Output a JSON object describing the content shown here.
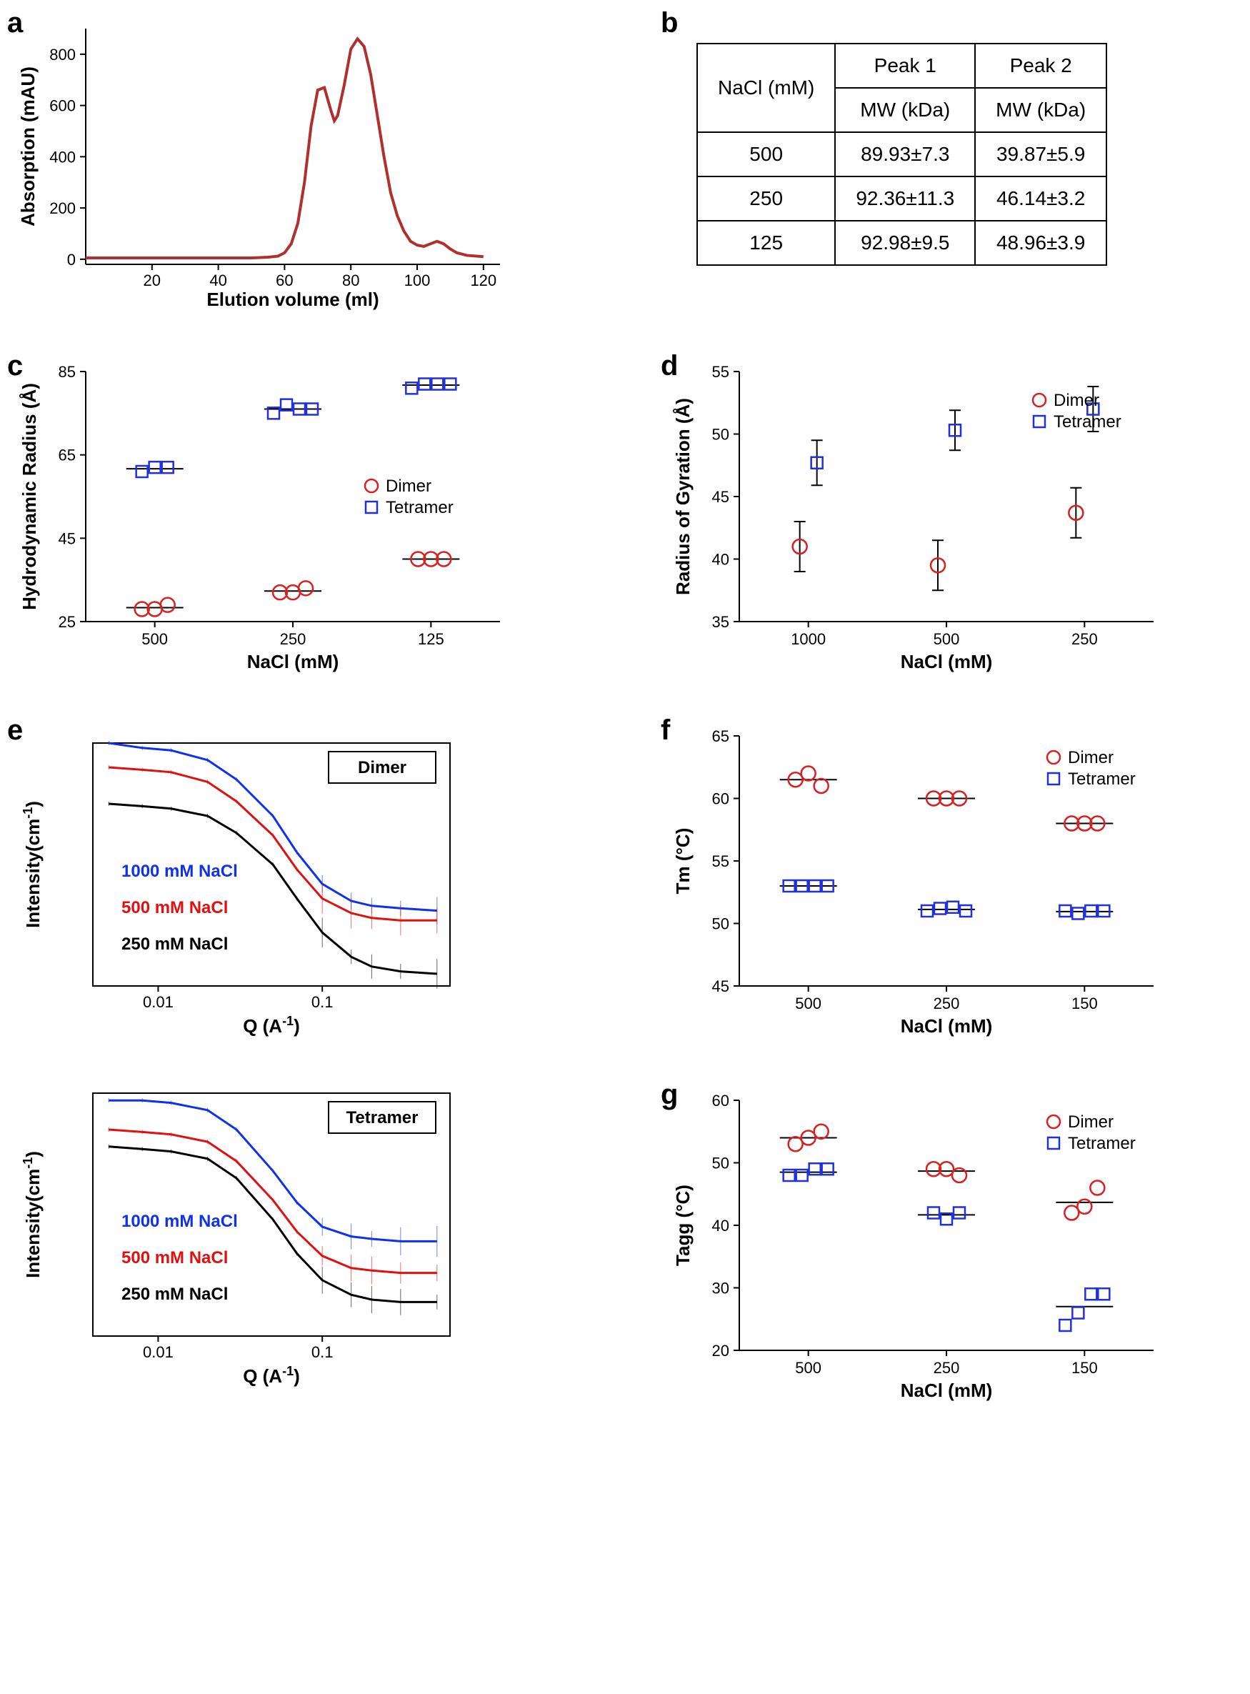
{
  "panel_a": {
    "label": "a",
    "type": "line",
    "xlabel": "Elution volume (ml)",
    "ylabel": "Absorption (mAU)",
    "xlim": [
      0,
      125
    ],
    "ylim": [
      -20,
      900
    ],
    "xticks": [
      20,
      40,
      60,
      80,
      100,
      120
    ],
    "yticks": [
      0,
      200,
      400,
      600,
      800
    ],
    "line_color": "#b03030",
    "line_width": 4,
    "data": [
      [
        0,
        5
      ],
      [
        5,
        5
      ],
      [
        10,
        5
      ],
      [
        15,
        5
      ],
      [
        20,
        5
      ],
      [
        25,
        5
      ],
      [
        30,
        5
      ],
      [
        35,
        5
      ],
      [
        40,
        5
      ],
      [
        45,
        5
      ],
      [
        50,
        5
      ],
      [
        55,
        8
      ],
      [
        58,
        12
      ],
      [
        60,
        25
      ],
      [
        62,
        60
      ],
      [
        64,
        140
      ],
      [
        66,
        300
      ],
      [
        68,
        520
      ],
      [
        70,
        660
      ],
      [
        72,
        670
      ],
      [
        74,
        580
      ],
      [
        75,
        540
      ],
      [
        76,
        560
      ],
      [
        78,
        680
      ],
      [
        80,
        820
      ],
      [
        82,
        860
      ],
      [
        84,
        830
      ],
      [
        86,
        720
      ],
      [
        88,
        560
      ],
      [
        90,
        400
      ],
      [
        92,
        260
      ],
      [
        94,
        170
      ],
      [
        96,
        110
      ],
      [
        98,
        70
      ],
      [
        100,
        55
      ],
      [
        102,
        50
      ],
      [
        104,
        60
      ],
      [
        106,
        70
      ],
      [
        108,
        60
      ],
      [
        110,
        40
      ],
      [
        112,
        25
      ],
      [
        115,
        15
      ],
      [
        120,
        10
      ]
    ]
  },
  "panel_b": {
    "label": "b",
    "header_nacl": "NaCl (mM)",
    "header_p1": "Peak 1",
    "header_p2": "Peak 2",
    "sub_mw": "MW (kDa)",
    "rows": [
      {
        "nacl": "500",
        "p1": "89.93±7.3",
        "p2": "39.87±5.9"
      },
      {
        "nacl": "250",
        "p1": "92.36±11.3",
        "p2": "46.14±3.2"
      },
      {
        "nacl": "125",
        "p1": "92.98±9.5",
        "p2": "48.96±3.9"
      }
    ]
  },
  "panel_c": {
    "label": "c",
    "type": "scatter",
    "xlabel": "NaCl (mM)",
    "ylabel": "Hydrodynamic Radius (Å)",
    "x_categories": [
      "500",
      "250",
      "125"
    ],
    "ylim": [
      25,
      85
    ],
    "yticks": [
      25,
      45,
      65,
      85
    ],
    "legend": [
      "Dimer",
      "Tetramer"
    ],
    "colors": {
      "Dimer": "#d92020",
      "Tetramer": "#2030e0"
    },
    "markers": {
      "Dimer": "circle",
      "Tetramer": "square"
    },
    "marker_size": 10,
    "dimer": {
      "500": [
        28,
        28,
        29
      ],
      "250": [
        32,
        32,
        33
      ],
      "125": [
        40,
        40,
        40
      ]
    },
    "tetramer": {
      "500": [
        61,
        62,
        62
      ],
      "250": [
        75,
        77,
        76,
        76
      ],
      "125": [
        81,
        82,
        82,
        82
      ]
    }
  },
  "panel_d": {
    "label": "d",
    "type": "scatter",
    "xlabel": "NaCl (mM)",
    "ylabel": "Radius of Gyration (Å)",
    "x_categories": [
      "1000",
      "500",
      "250"
    ],
    "ylim": [
      35,
      55
    ],
    "yticks": [
      35,
      40,
      45,
      50,
      55
    ],
    "legend": [
      "Dimer",
      "Tetramer"
    ],
    "colors": {
      "Dimer": "#d92020",
      "Tetramer": "#2030e0"
    },
    "markers": {
      "Dimer": "circle",
      "Tetramer": "square"
    },
    "marker_size": 10,
    "points": {
      "Dimer": {
        "1000": {
          "v": 41,
          "e": 2
        },
        "500": {
          "v": 39.5,
          "e": 2
        },
        "250": {
          "v": 43.7,
          "e": 2
        }
      },
      "Tetramer": {
        "1000": {
          "v": 47.7,
          "e": 1.8
        },
        "500": {
          "v": 50.3,
          "e": 1.6
        },
        "250": {
          "v": 52,
          "e": 1.8
        }
      }
    }
  },
  "panel_e": {
    "label": "e",
    "type": "line",
    "xlabel": "Q (A",
    "xlabel_sup": "-1",
    "xlabel_close": ")",
    "ylabel": "Intensity(cm",
    "ylabel_sup": "-1",
    "ylabel_close": ")",
    "xticks": [
      0.01,
      0.1
    ],
    "colors": {
      "1000": "#1030f0",
      "500": "#e01010",
      "250": "#000000"
    },
    "condition_labels": [
      "1000 mM NaCl",
      "500 mM NaCl",
      "250 mM NaCl"
    ],
    "subpanels": [
      "Dimer",
      "Tetramer"
    ],
    "x_range": [
      0.004,
      0.6
    ],
    "curves": {
      "Dimer": {
        "1000": [
          [
            0.005,
            1.0
          ],
          [
            0.008,
            0.98
          ],
          [
            0.012,
            0.97
          ],
          [
            0.02,
            0.93
          ],
          [
            0.03,
            0.85
          ],
          [
            0.05,
            0.7
          ],
          [
            0.07,
            0.55
          ],
          [
            0.1,
            0.42
          ],
          [
            0.15,
            0.35
          ],
          [
            0.2,
            0.33
          ],
          [
            0.3,
            0.32
          ],
          [
            0.5,
            0.31
          ]
        ],
        "500": [
          [
            0.005,
            0.9
          ],
          [
            0.008,
            0.89
          ],
          [
            0.012,
            0.88
          ],
          [
            0.02,
            0.84
          ],
          [
            0.03,
            0.76
          ],
          [
            0.05,
            0.62
          ],
          [
            0.07,
            0.48
          ],
          [
            0.1,
            0.36
          ],
          [
            0.15,
            0.3
          ],
          [
            0.2,
            0.28
          ],
          [
            0.3,
            0.27
          ],
          [
            0.5,
            0.27
          ]
        ],
        "250": [
          [
            0.005,
            0.75
          ],
          [
            0.008,
            0.74
          ],
          [
            0.012,
            0.73
          ],
          [
            0.02,
            0.7
          ],
          [
            0.03,
            0.63
          ],
          [
            0.05,
            0.5
          ],
          [
            0.07,
            0.36
          ],
          [
            0.1,
            0.22
          ],
          [
            0.15,
            0.12
          ],
          [
            0.2,
            0.08
          ],
          [
            0.3,
            0.06
          ],
          [
            0.5,
            0.05
          ]
        ]
      },
      "Tetramer": {
        "1000": [
          [
            0.005,
            0.97
          ],
          [
            0.008,
            0.97
          ],
          [
            0.012,
            0.96
          ],
          [
            0.02,
            0.93
          ],
          [
            0.03,
            0.85
          ],
          [
            0.05,
            0.68
          ],
          [
            0.07,
            0.55
          ],
          [
            0.1,
            0.45
          ],
          [
            0.15,
            0.41
          ],
          [
            0.2,
            0.4
          ],
          [
            0.3,
            0.39
          ],
          [
            0.5,
            0.39
          ]
        ],
        "500": [
          [
            0.005,
            0.85
          ],
          [
            0.008,
            0.84
          ],
          [
            0.012,
            0.83
          ],
          [
            0.02,
            0.8
          ],
          [
            0.03,
            0.72
          ],
          [
            0.05,
            0.56
          ],
          [
            0.07,
            0.43
          ],
          [
            0.1,
            0.33
          ],
          [
            0.15,
            0.28
          ],
          [
            0.2,
            0.27
          ],
          [
            0.3,
            0.26
          ],
          [
            0.5,
            0.26
          ]
        ],
        "250": [
          [
            0.005,
            0.78
          ],
          [
            0.008,
            0.77
          ],
          [
            0.012,
            0.76
          ],
          [
            0.02,
            0.73
          ],
          [
            0.03,
            0.65
          ],
          [
            0.05,
            0.48
          ],
          [
            0.07,
            0.34
          ],
          [
            0.1,
            0.23
          ],
          [
            0.15,
            0.17
          ],
          [
            0.2,
            0.15
          ],
          [
            0.3,
            0.14
          ],
          [
            0.5,
            0.14
          ]
        ]
      }
    }
  },
  "panel_f": {
    "label": "f",
    "type": "scatter",
    "xlabel": "NaCl (mM)",
    "ylabel": "Tm (°C)",
    "x_categories": [
      "500",
      "250",
      "150"
    ],
    "ylim": [
      45,
      65
    ],
    "yticks": [
      45,
      50,
      55,
      60,
      65
    ],
    "legend": [
      "Dimer",
      "Tetramer"
    ],
    "colors": {
      "Dimer": "#d92020",
      "Tetramer": "#2030e0"
    },
    "markers": {
      "Dimer": "circle",
      "Tetramer": "square"
    },
    "marker_size": 10,
    "dimer": {
      "500": [
        61.5,
        62,
        61
      ],
      "250": [
        60,
        60,
        60
      ],
      "150": [
        58,
        58,
        58
      ]
    },
    "tetramer": {
      "500": [
        53,
        53,
        53,
        53
      ],
      "250": [
        51,
        51.2,
        51.3,
        51
      ],
      "150": [
        51,
        50.8,
        51,
        51
      ]
    }
  },
  "panel_g": {
    "label": "g",
    "type": "scatter",
    "xlabel": "NaCl (mM)",
    "ylabel": "Tagg (°C)",
    "x_categories": [
      "500",
      "250",
      "150"
    ],
    "ylim": [
      20,
      60
    ],
    "yticks": [
      20,
      30,
      40,
      50,
      60
    ],
    "legend": [
      "Dimer",
      "Tetramer"
    ],
    "colors": {
      "Dimer": "#d92020",
      "Tetramer": "#2030e0"
    },
    "markers": {
      "Dimer": "circle",
      "Tetramer": "square"
    },
    "marker_size": 10,
    "dimer": {
      "500": [
        53,
        54,
        55
      ],
      "250": [
        49,
        49,
        48
      ],
      "150": [
        42,
        43,
        46
      ]
    },
    "tetramer": {
      "500": [
        48,
        48,
        49,
        49
      ],
      "250": [
        42,
        41,
        42
      ],
      "150": [
        24,
        26,
        29,
        29
      ]
    }
  }
}
